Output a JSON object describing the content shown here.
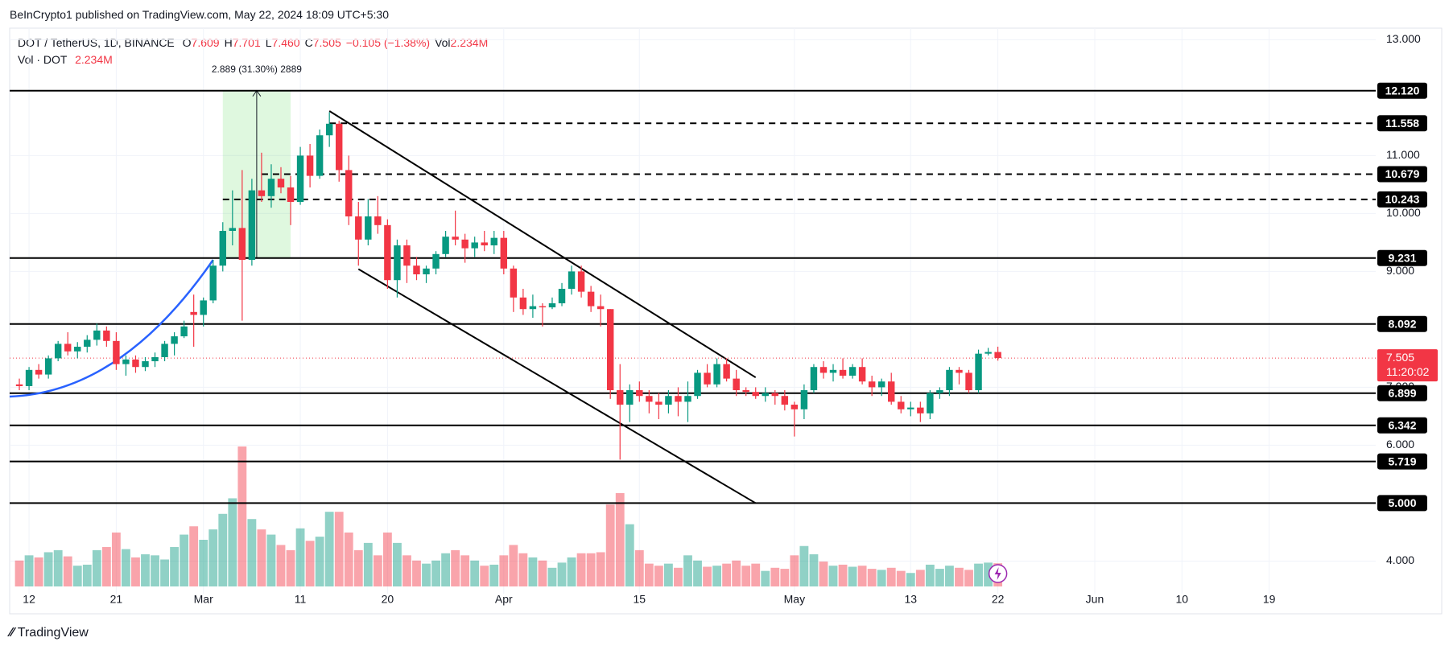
{
  "publisher": "BeInCrypto1 published on TradingView.com, May 22, 2024 18:09 UTC+5:30",
  "footer": "TradingView",
  "chart_data": {
    "type": "candlestick",
    "symbol": "DOT / TetherUS, 1D, BINANCE",
    "ohlc": [
      {
        "key": "O",
        "value": "7.609"
      },
      {
        "key": "H",
        "value": "7.701"
      },
      {
        "key": "L",
        "value": "7.460"
      },
      {
        "key": "C",
        "value": "7.505"
      }
    ],
    "change": "−0.105 (−1.38%)",
    "vol_key": "Vol",
    "vol_value": "2.234M",
    "vol_legend": "Vol · DOT",
    "up_color": "#089981",
    "down_color": "#f23645",
    "x": [
      "2024-02-11",
      "2024-02-12",
      "2024-02-13",
      "2024-02-14",
      "2024-02-15",
      "2024-02-16",
      "2024-02-17",
      "2024-02-18",
      "2024-02-19",
      "2024-02-20",
      "2024-02-21",
      "2024-02-22",
      "2024-02-23",
      "2024-02-24",
      "2024-02-25",
      "2024-02-26",
      "2024-02-27",
      "2024-02-28",
      "2024-02-29",
      "2024-03-01",
      "2024-03-02",
      "2024-03-03",
      "2024-03-04",
      "2024-03-05",
      "2024-03-06",
      "2024-03-07",
      "2024-03-08",
      "2024-03-09",
      "2024-03-10",
      "2024-03-11",
      "2024-03-12",
      "2024-03-13",
      "2024-03-14",
      "2024-03-15",
      "2024-03-16",
      "2024-03-17",
      "2024-03-18",
      "2024-03-19",
      "2024-03-20",
      "2024-03-21",
      "2024-03-22",
      "2024-03-23",
      "2024-03-24",
      "2024-03-25",
      "2024-03-26",
      "2024-03-27",
      "2024-03-28",
      "2024-03-29",
      "2024-03-30",
      "2024-03-31",
      "2024-04-01",
      "2024-04-02",
      "2024-04-03",
      "2024-04-04",
      "2024-04-05",
      "2024-04-06",
      "2024-04-07",
      "2024-04-08",
      "2024-04-09",
      "2024-04-10",
      "2024-04-11",
      "2024-04-12",
      "2024-04-13",
      "2024-04-14",
      "2024-04-15",
      "2024-04-16",
      "2024-04-17",
      "2024-04-18",
      "2024-04-19",
      "2024-04-20",
      "2024-04-21",
      "2024-04-22",
      "2024-04-23",
      "2024-04-24",
      "2024-04-25",
      "2024-04-26",
      "2024-04-27",
      "2024-04-28",
      "2024-04-29",
      "2024-04-30",
      "2024-05-01",
      "2024-05-02",
      "2024-05-03",
      "2024-05-04",
      "2024-05-05",
      "2024-05-06",
      "2024-05-07",
      "2024-05-08",
      "2024-05-09",
      "2024-05-10",
      "2024-05-11",
      "2024-05-12",
      "2024-05-13",
      "2024-05-14",
      "2024-05-15",
      "2024-05-16",
      "2024-05-17",
      "2024-05-18",
      "2024-05-19",
      "2024-05-20",
      "2024-05-21",
      "2024-05-22"
    ],
    "open": [
      7.05,
      7.02,
      7.3,
      7.22,
      7.5,
      7.75,
      7.62,
      7.7,
      7.82,
      7.98,
      7.8,
      7.4,
      7.48,
      7.35,
      7.45,
      7.52,
      7.75,
      7.88,
      8.3,
      8.25,
      8.5,
      9.1,
      9.7,
      9.75,
      9.2,
      10.4,
      10.3,
      10.6,
      10.45,
      10.2,
      11.0,
      10.65,
      11.35,
      11.55,
      10.75,
      9.95,
      9.55,
      9.95,
      9.8,
      8.85,
      9.45,
      9.1,
      8.95,
      9.05,
      9.3,
      9.6,
      9.55,
      9.4,
      9.5,
      9.45,
      9.58,
      9.05,
      8.55,
      8.35,
      8.4,
      8.38,
      8.45,
      8.7,
      9.0,
      8.65,
      8.4,
      8.35,
      6.95,
      6.7,
      6.95,
      6.85,
      6.75,
      6.7,
      6.85,
      6.75,
      6.85,
      7.25,
      7.05,
      7.4,
      7.15,
      6.95,
      6.92,
      6.85,
      6.9,
      6.85,
      6.7,
      6.62,
      6.95,
      7.35,
      7.25,
      7.3,
      7.2,
      7.35,
      7.1,
      7.0,
      7.1,
      6.75,
      6.62,
      6.65,
      6.55,
      6.9,
      6.95,
      7.3,
      7.25,
      6.95,
      7.58,
      7.609
    ],
    "high": [
      7.15,
      7.35,
      7.4,
      7.55,
      7.8,
      7.95,
      7.78,
      7.9,
      8.1,
      8.05,
      7.95,
      7.55,
      7.55,
      7.52,
      7.6,
      7.8,
      7.95,
      8.15,
      8.6,
      8.55,
      9.2,
      9.85,
      10.4,
      10.75,
      10.6,
      11.05,
      10.85,
      10.8,
      10.65,
      11.15,
      11.2,
      11.45,
      11.75,
      11.6,
      11.0,
      10.2,
      10.25,
      10.3,
      9.9,
      9.55,
      9.55,
      9.25,
      9.1,
      9.35,
      9.7,
      10.05,
      9.65,
      9.6,
      9.7,
      9.7,
      9.7,
      9.1,
      8.7,
      8.6,
      8.45,
      8.55,
      8.8,
      9.1,
      9.1,
      8.75,
      8.6,
      8.35,
      7.4,
      7.05,
      7.1,
      6.95,
      6.9,
      6.95,
      7.0,
      7.1,
      7.3,
      7.4,
      7.5,
      7.5,
      7.3,
      7.0,
      7.0,
      7.0,
      6.95,
      6.95,
      6.75,
      7.05,
      7.4,
      7.45,
      7.4,
      7.5,
      7.4,
      7.5,
      7.2,
      7.15,
      7.25,
      6.85,
      6.75,
      6.75,
      6.95,
      7.0,
      7.35,
      7.35,
      7.3,
      7.65,
      7.68,
      7.701
    ],
    "low": [
      6.95,
      6.95,
      7.15,
      7.15,
      7.45,
      7.55,
      7.5,
      7.6,
      7.72,
      7.7,
      7.3,
      7.2,
      7.25,
      7.28,
      7.35,
      7.45,
      7.55,
      7.85,
      7.7,
      8.05,
      8.45,
      9.0,
      9.45,
      8.15,
      9.1,
      10.2,
      10.1,
      10.35,
      9.8,
      10.15,
      10.45,
      10.6,
      11.15,
      10.55,
      9.8,
      9.1,
      9.45,
      9.65,
      8.7,
      8.55,
      8.8,
      8.85,
      8.8,
      8.95,
      9.25,
      9.45,
      9.15,
      9.25,
      9.35,
      9.3,
      8.95,
      8.3,
      8.25,
      8.2,
      8.05,
      8.35,
      8.4,
      8.6,
      8.55,
      8.3,
      8.05,
      6.8,
      5.75,
      6.4,
      6.75,
      6.55,
      6.45,
      6.55,
      6.5,
      6.4,
      6.8,
      7.0,
      7.0,
      7.1,
      6.85,
      6.85,
      6.8,
      6.75,
      6.7,
      6.6,
      6.15,
      6.45,
      6.9,
      7.15,
      7.1,
      7.15,
      7.15,
      7.05,
      6.85,
      6.85,
      6.7,
      6.55,
      6.5,
      6.4,
      6.45,
      6.8,
      6.85,
      7.05,
      6.9,
      6.9,
      7.55,
      7.46
    ],
    "close": [
      7.02,
      7.3,
      7.22,
      7.5,
      7.75,
      7.62,
      7.7,
      7.82,
      7.98,
      7.8,
      7.4,
      7.48,
      7.35,
      7.45,
      7.52,
      7.75,
      7.88,
      8.05,
      8.25,
      8.5,
      9.1,
      9.7,
      9.75,
      9.2,
      10.4,
      10.3,
      10.6,
      10.45,
      10.2,
      11.0,
      10.65,
      11.35,
      11.55,
      10.75,
      9.95,
      9.55,
      9.95,
      9.8,
      8.85,
      9.45,
      9.1,
      8.95,
      9.05,
      9.3,
      9.6,
      9.55,
      9.4,
      9.5,
      9.45,
      9.58,
      9.05,
      8.55,
      8.35,
      8.4,
      8.38,
      8.45,
      8.7,
      9.0,
      8.65,
      8.4,
      8.35,
      6.95,
      6.7,
      6.95,
      6.85,
      6.75,
      6.7,
      6.85,
      6.75,
      6.85,
      7.25,
      7.05,
      7.4,
      7.15,
      6.95,
      6.92,
      6.85,
      6.9,
      6.85,
      6.7,
      6.62,
      6.95,
      7.35,
      7.25,
      7.3,
      7.2,
      7.35,
      7.1,
      7.0,
      7.1,
      6.75,
      6.62,
      6.65,
      6.55,
      6.9,
      6.95,
      7.3,
      7.25,
      6.95,
      7.58,
      7.609,
      7.505
    ],
    "volume": [
      2.5,
      3.0,
      2.8,
      3.3,
      3.5,
      2.9,
      2.0,
      2.1,
      3.5,
      3.8,
      5.2,
      3.6,
      2.8,
      3.1,
      3.0,
      2.6,
      3.8,
      5.0,
      5.8,
      4.5,
      5.5,
      7.0,
      8.5,
      13.5,
      6.5,
      5.5,
      5.0,
      4.0,
      3.5,
      5.6,
      4.4,
      4.8,
      7.2,
      7.2,
      5.2,
      3.5,
      4.2,
      3.0,
      5.2,
      4.2,
      3.0,
      2.5,
      2.2,
      2.5,
      3.2,
      3.5,
      3.0,
      2.5,
      2.0,
      2.1,
      3.0,
      4.0,
      3.2,
      2.8,
      2.5,
      1.8,
      2.3,
      2.8,
      3.2,
      3.2,
      3.3,
      7.9,
      9.0,
      6.0,
      3.5,
      2.2,
      2.0,
      2.2,
      1.8,
      3.0,
      2.5,
      1.9,
      2.0,
      2.2,
      2.5,
      2.0,
      2.2,
      1.5,
      1.8,
      1.7,
      3.0,
      3.9,
      3.1,
      2.4,
      2.0,
      2.1,
      1.9,
      2.0,
      1.7,
      1.6,
      1.8,
      1.5,
      1.3,
      1.6,
      2.1,
      1.7,
      2.0,
      1.8,
      1.6,
      2.2,
      2.3,
      2.234
    ],
    "xlim": [
      "2024-02-10",
      "2024-06-30"
    ],
    "xticks": [
      {
        "value": "2024-02-12",
        "label": "12"
      },
      {
        "value": "2024-02-21",
        "label": "21"
      },
      {
        "value": "2024-03-01",
        "label": "Mar"
      },
      {
        "value": "2024-03-11",
        "label": "11"
      },
      {
        "value": "2024-03-20",
        "label": "20"
      },
      {
        "value": "2024-04-01",
        "label": "Apr"
      },
      {
        "value": "2024-04-15",
        "label": "15"
      },
      {
        "value": "2024-05-01",
        "label": "May"
      },
      {
        "value": "2024-05-13",
        "label": "13"
      },
      {
        "value": "2024-05-22",
        "label": "22"
      },
      {
        "value": "2024-06-01",
        "label": "Jun"
      },
      {
        "value": "2024-06-10",
        "label": "10"
      },
      {
        "value": "2024-06-19",
        "label": "19"
      }
    ],
    "ylim": [
      3.52,
      13.2
    ],
    "yticks": [
      {
        "value": 4,
        "label": "4.000"
      },
      {
        "value": 6,
        "label": "6.000"
      },
      {
        "value": 7,
        "label": "7.000"
      },
      {
        "value": 9,
        "label": "9.000"
      },
      {
        "value": 10,
        "label": "10.000"
      },
      {
        "value": 11,
        "label": "11.000"
      },
      {
        "value": 13,
        "label": "13.000"
      }
    ],
    "grid": true,
    "levels": [
      {
        "value": 12.12,
        "label": "12.120",
        "style": "solid"
      },
      {
        "value": 11.558,
        "label": "11.558",
        "style": "dashed",
        "start": "2024-03-14"
      },
      {
        "value": 10.679,
        "label": "10.679",
        "style": "dashed",
        "start": "2024-03-07"
      },
      {
        "value": 10.243,
        "label": "10.243",
        "style": "dashed",
        "start": "2024-03-03"
      },
      {
        "value": 9.231,
        "label": "9.231",
        "style": "solid"
      },
      {
        "value": 8.092,
        "label": "8.092",
        "style": "solid"
      },
      {
        "value": 6.899,
        "label": "6.899",
        "style": "solid"
      },
      {
        "value": 6.342,
        "label": "6.342",
        "style": "solid"
      },
      {
        "value": 5.719,
        "label": "5.719",
        "style": "solid"
      },
      {
        "value": 5,
        "label": "5.000",
        "style": "solid"
      }
    ],
    "last_price": {
      "label": "7.505",
      "countdown": "11:20:02"
    },
    "trendlines": [
      {
        "x": [
          "2024-03-14",
          "2024-04-27"
        ],
        "y": [
          11.77,
          7.17
        ]
      },
      {
        "x": [
          "2024-03-17",
          "2024-04-27"
        ],
        "y": [
          9.04,
          5.0
        ]
      }
    ],
    "curve": {
      "color": "#2962ff",
      "x": [
        "2024-02-10",
        "2024-03-02"
      ],
      "y": [
        6.84,
        9.2
      ]
    },
    "measure": {
      "x": [
        "2024-03-03",
        "2024-03-10"
      ],
      "y": [
        9.231,
        12.12
      ],
      "label": "2.889 (31.30%) 2889"
    }
  }
}
